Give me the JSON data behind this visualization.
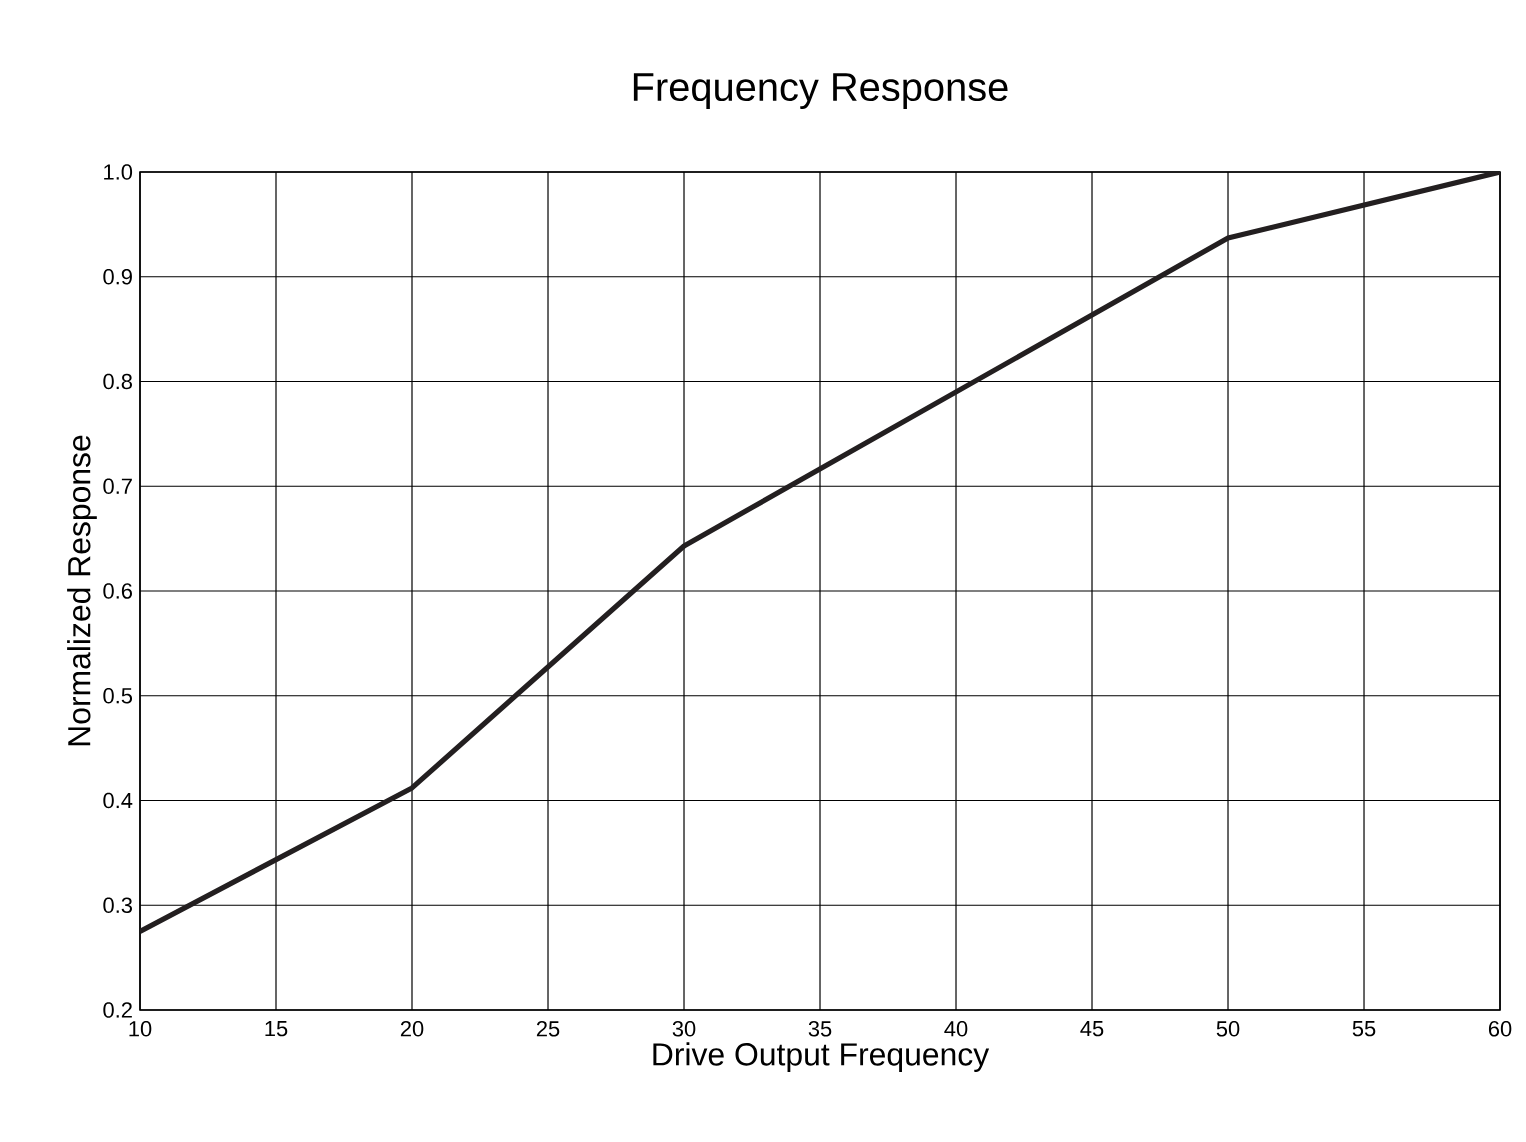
{
  "chart_data": {
    "type": "line",
    "title": "Frequency Response",
    "xlabel": "Drive Output Frequency",
    "ylabel": "Normalized Response",
    "x": [
      10,
      20,
      30,
      50,
      60
    ],
    "series": [
      {
        "color": "#231f20",
        "values": [
          0.275,
          0.412,
          0.643,
          0.937,
          1.0
        ]
      }
    ],
    "xlim": [
      10,
      60
    ],
    "ylim": [
      0.2,
      1.0
    ],
    "xticks": [
      10,
      15,
      20,
      25,
      30,
      35,
      40,
      45,
      50,
      55,
      60
    ],
    "yticks": [
      0.2,
      0.3,
      0.4,
      0.5,
      0.6,
      0.7,
      0.8,
      0.9,
      {
        "value": 1.0,
        "label": "1.0"
      }
    ],
    "grid": true,
    "marker": "none",
    "line_style": "solid"
  }
}
